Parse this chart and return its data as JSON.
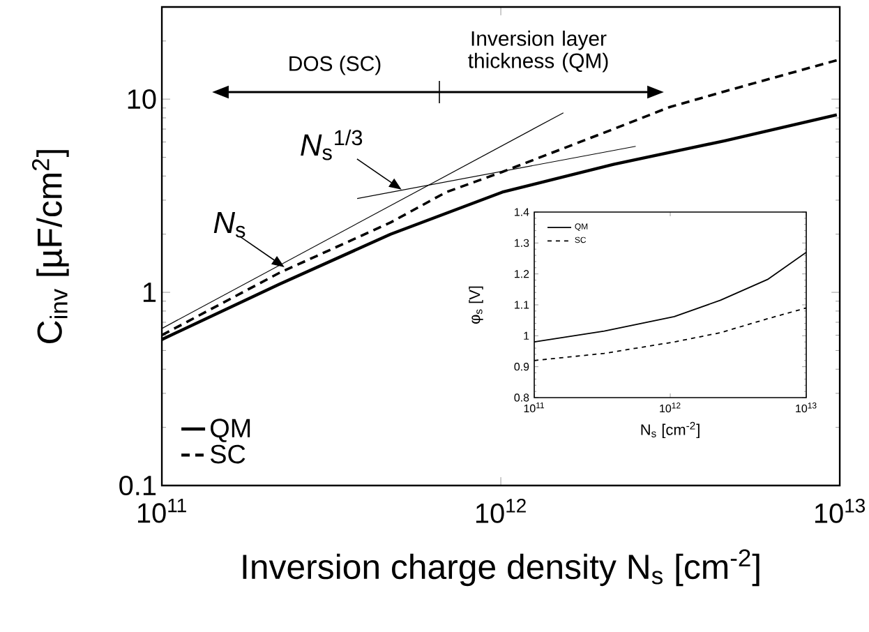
{
  "chart_data": [
    {
      "type": "line",
      "xlabel": "Inversion charge density N$_{s}$ [cm$^{-2}$]",
      "ylabel": "C$_{inv}$ [µF/cm$^{2}$]",
      "log": "xy",
      "xlim": [
        100000000000.0,
        10000000000000.0
      ],
      "ylim": [
        0.1,
        30
      ],
      "xticks": [
        {
          "value": 100000000000.0,
          "label": "10$^{11}$"
        },
        {
          "value": 1000000000000.0,
          "label": "10$^{12}$"
        },
        {
          "value": 10000000000000.0,
          "label": "10$^{13}$"
        }
      ],
      "yticks": [
        0.1,
        1,
        10
      ],
      "legend": "bottom left",
      "marker": "none",
      "series": [
        {
          "name": "QM",
          "color": "#000000",
          "line_style": "solid",
          "x": [
            100000000000.0,
            222000000000.0,
            473000000000.0,
            1010000000000.0,
            2150000000000.0,
            4600000000000.0,
            9800000000000.0
          ],
          "values": [
            0.57,
            1.1,
            2.0,
            3.3,
            4.6,
            6.1,
            8.3
          ]
        },
        {
          "name": "SC",
          "color": "#000000",
          "line_style": "dashed",
          "x": [
            100000000000.0,
            222000000000.0,
            473000000000.0,
            690000000000.0,
            1010000000000.0,
            2150000000000.0,
            3150000000000.0,
            4600000000000.0,
            9800000000000.0
          ],
          "values": [
            0.6,
            1.26,
            2.3,
            3.3,
            4.2,
            7.0,
            9.1,
            11,
            15.9
          ]
        },
        {
          "color": "#000000",
          "line_style": "solid",
          "x": [
            100000000000.0,
            1530000000000.0
          ],
          "values": [
            0.65,
            8.5
          ]
        },
        {
          "color": "#000000",
          "line_style": "solid",
          "x": [
            377000000000.0,
            2500000000000.0
          ],
          "values": [
            3.06,
            5.7
          ]
        }
      ],
      "annotations": [
        "DOS (SC)",
        "Inversion layer thickness (QM)",
        {
          "text": "*N*$_{s}$",
          "x": 230000000000.0,
          "y": 1.35
        },
        {
          "text": "*N*$_{s}$$^{1/3}$",
          "x": 510000000000.0,
          "y": 3.4
        }
      ]
    },
    {
      "type": "line",
      "xlabel": "N$_{s}$ [cm$^{-2}$]",
      "ylabel": "φ$_{s}$ [V]",
      "log": "x",
      "xlim": [
        100000000000.0,
        10000000000000.0
      ],
      "ylim": [
        0.8,
        1.4
      ],
      "xticks": [
        {
          "value": 100000000000.0,
          "label": "10$^{11}$"
        },
        {
          "value": 1000000000000.0,
          "label": "10$^{12}$"
        },
        {
          "value": 10000000000000.0,
          "label": "10$^{13}$"
        }
      ],
      "yticks": [
        0.8,
        0.9,
        1,
        1.1,
        1.2,
        1.3,
        1.4
      ],
      "legend": "top left",
      "marker": "none",
      "series": [
        {
          "name": "QM",
          "color": "#000000",
          "line_style": "solid",
          "x": [
            100000000000.0,
            327000000000.0,
            1070000000000.0,
            2340000000000.0,
            5190000000000.0,
            10000000000000.0
          ],
          "values": [
            0.98,
            1.015,
            1.062,
            1.115,
            1.182,
            1.27
          ]
        },
        {
          "name": "SC",
          "color": "#000000",
          "line_style": "dashed",
          "x": [
            100000000000.0,
            327000000000.0,
            1070000000000.0,
            2340000000000.0,
            5190000000000.0,
            10000000000000.0
          ],
          "values": [
            0.92,
            0.943,
            0.98,
            1.01,
            1.055,
            1.09
          ]
        }
      ]
    }
  ]
}
